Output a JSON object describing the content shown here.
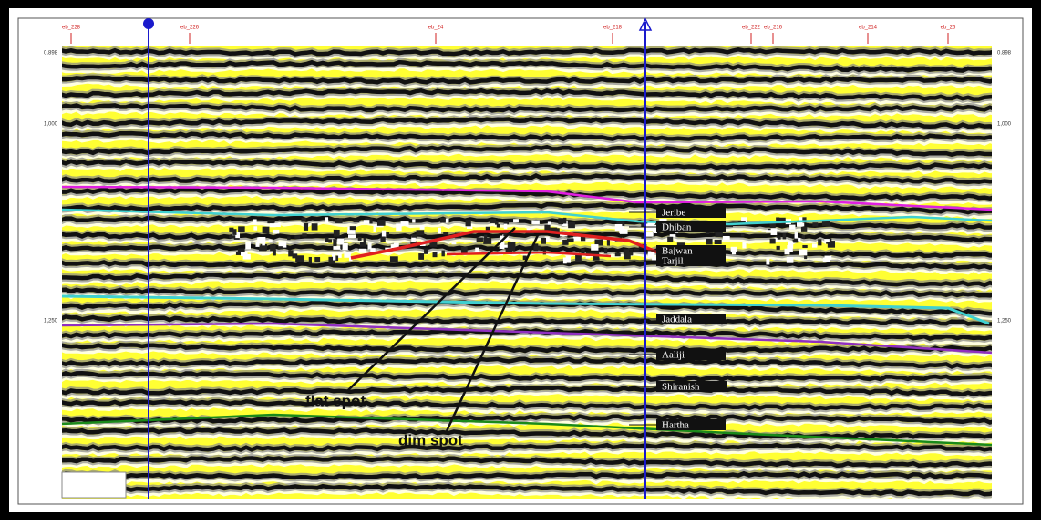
{
  "section": {
    "top_labels": [
      "eb_228",
      "eb_226",
      "eb_24",
      "eb_218",
      "eb_222",
      "eb_216",
      "eb_214",
      "eb_26"
    ],
    "time_labels": [
      "0.898",
      "1,000",
      "1,250"
    ],
    "horizons": [
      "Jeribe",
      "Dhiban",
      "Bajwan",
      "Tarjil",
      "Jaddala",
      "Aaliji",
      "Shiranish",
      "Hartha"
    ],
    "annotations": [
      "flat spot",
      "dim spot"
    ]
  }
}
